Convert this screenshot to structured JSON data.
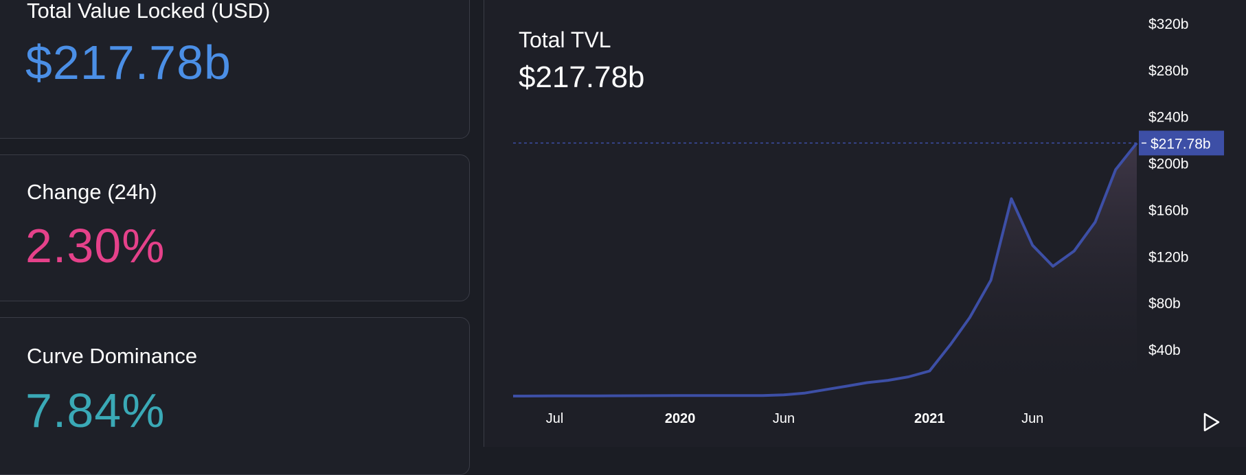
{
  "cards": {
    "tvl": {
      "label": "Total Value Locked (USD)",
      "value": "$217.78b",
      "color": "#4b8fe6"
    },
    "change": {
      "label": "Change (24h)",
      "value": "2.30%",
      "color": "#e5418a"
    },
    "dominance": {
      "label": "Curve Dominance",
      "value": "7.84%",
      "color": "#3aa9b6"
    }
  },
  "chart": {
    "title": "Total TVL",
    "value": "$217.78b"
  },
  "chart_data": {
    "type": "area",
    "title": "Total TVL",
    "xlabel": "",
    "ylabel": "",
    "x_ticks": [
      {
        "date": "2019-07",
        "label": "Jul",
        "bold": false
      },
      {
        "date": "2020-01",
        "label": "2020",
        "bold": true
      },
      {
        "date": "2020-06",
        "label": "Jun",
        "bold": false
      },
      {
        "date": "2021-01",
        "label": "2021",
        "bold": true
      },
      {
        "date": "2021-06",
        "label": "Jun",
        "bold": false
      }
    ],
    "y_ticks": [
      "$40b",
      "$80b",
      "$120b",
      "$160b",
      "$200b",
      "$240b",
      "$280b",
      "$320b"
    ],
    "ylim": [
      0,
      320
    ],
    "current_value": 217.78,
    "current_label": "$217.78b",
    "x": [
      "2019-05",
      "2019-07",
      "2019-09",
      "2019-11",
      "2020-01",
      "2020-03",
      "2020-05",
      "2020-06",
      "2020-07",
      "2020-08",
      "2020-09",
      "2020-10",
      "2020-11",
      "2020-12",
      "2021-01",
      "2021-02",
      "2021-03",
      "2021-04",
      "2021-05",
      "2021-06",
      "2021-07",
      "2021-08",
      "2021-09",
      "2021-10",
      "2021-11"
    ],
    "values": [
      0.5,
      0.6,
      0.7,
      0.8,
      0.9,
      0.9,
      1.0,
      1.5,
      3.0,
      6.0,
      9.0,
      12.0,
      14.0,
      17.0,
      22.0,
      45.0,
      68.0,
      100.0,
      170.0,
      130.0,
      112.0,
      125.0,
      150.0,
      195.0,
      217.78
    ],
    "colors": {
      "line": "#3d4fa6",
      "fill": "#4a3f52",
      "badge": "#3d4fa6"
    }
  }
}
